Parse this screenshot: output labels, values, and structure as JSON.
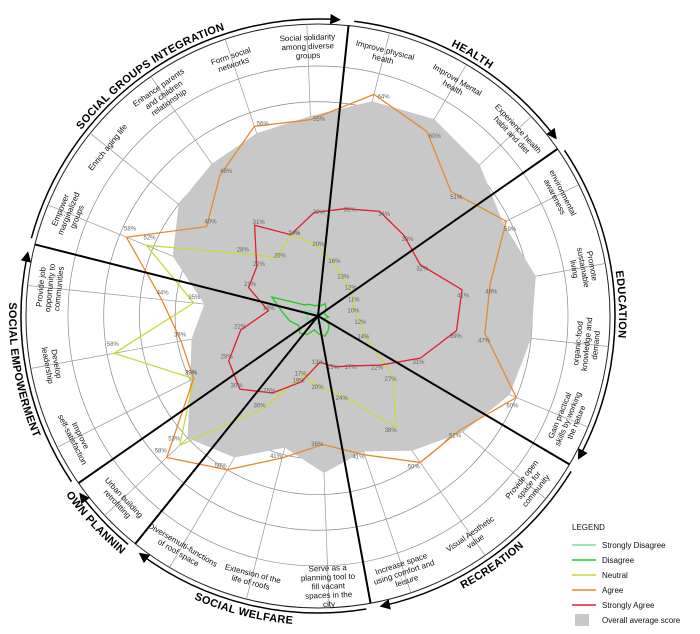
{
  "chart_data": {
    "type": "radar",
    "groups": [
      {
        "name": "HEALTH",
        "categories": [
          "Improve physical health",
          "Improve Mental health",
          "Experience health habit and diet"
        ]
      },
      {
        "name": "EDUCATION",
        "categories": [
          "environmental awareness",
          "Promote sustainable living",
          "organic-food knowledge and demand",
          "Gain practical skills by working the nature"
        ]
      },
      {
        "name": "RECREATION",
        "categories": [
          "Provide open space for community",
          "Visual Aesthetic value",
          "Increase space using comfort and leisure"
        ]
      },
      {
        "name": "SOCIAL WELFARE",
        "categories": [
          "Serve as a planning tool to fill vacant spaces in the city",
          "Extension of the life of roofs",
          "Diversemulti-functions of roof space"
        ]
      },
      {
        "name": "TOWN PLANNING",
        "categories": [
          "Urban building retrofitting"
        ]
      },
      {
        "name": "SOCIAL EMPOWERMENT",
        "categories": [
          "Improve self-satisfaction",
          "Develop leadership",
          "Provide job opportunity to communities"
        ]
      },
      {
        "name": "SOCIAL GROUPS INTEGRATION",
        "categories": [
          "Empower marginalized groups",
          "Enrich aging life",
          "Enhance parents and children relationship",
          "Form social networks",
          "Social solidarity among diverse groups"
        ]
      }
    ],
    "rlim": [
      0,
      70
    ],
    "rticks": [
      10,
      20,
      30,
      40,
      50,
      60,
      70
    ],
    "legend_title": "LEGEND",
    "series": [
      {
        "name": "Strongly Disagree",
        "color": "#6fe0a6",
        "values": [
          1,
          1,
          1,
          1,
          1,
          1,
          1,
          2,
          2,
          2,
          2,
          2,
          2,
          3,
          3,
          3,
          3,
          4,
          2,
          1,
          1,
          1
        ]
      },
      {
        "name": "Disagree",
        "color": "#22cc22",
        "values": [
          3,
          4,
          3,
          2,
          2,
          3,
          2,
          4,
          5,
          6,
          5,
          4,
          6,
          7,
          6,
          8,
          10,
          14,
          5,
          4,
          3,
          3
        ]
      },
      {
        "name": "Neutral",
        "color": "#c5dc3a",
        "values": [
          16,
          13,
          12,
          11,
          10,
          12,
          14,
          27,
          38,
          24,
          20,
          17,
          30,
          53,
          39,
          58,
          35,
          52,
          28,
          20,
          24,
          20
        ],
        "value_labels": [
          "16%",
          "13%",
          "12%",
          "11%",
          "10%",
          "12%",
          "14%",
          "27%",
          "38%",
          "24%",
          "20%",
          "17%",
          "30%",
          "53%",
          "39%",
          "58%",
          "35%",
          "52%",
          "28%",
          "20%",
          "24%",
          "20%"
        ]
      },
      {
        "name": "Agree",
        "color": "#e8892c",
        "values": [
          64,
          60,
          51,
          59,
          49,
          47,
          60,
          51,
          50,
          41,
          36,
          41,
          50,
          58,
          39,
          39,
          44,
          58,
          40,
          48,
          56,
          55
        ],
        "value_labels": [
          "64%",
          "60%",
          "51%",
          "59%",
          "49%",
          "47%",
          "60%",
          "51%",
          "50%",
          "41%",
          "36%",
          "41%",
          "50%",
          "58%",
          "39%",
          "39%",
          "44%",
          "58%",
          "40%",
          "48%",
          "56%",
          "55%"
        ]
      },
      {
        "name": "Strongly Agree",
        "color": "#e0202a",
        "values": [
          31,
          34,
          33,
          32,
          41,
          39,
          31,
          22,
          17,
          15,
          13,
          19,
          25,
          30,
          28,
          22,
          14,
          21,
          22,
          31,
          24,
          29
        ],
        "value_labels": [
          "31%",
          "34%",
          "33%",
          "32%",
          "41%",
          "39%",
          "31%",
          "22%",
          "17%",
          "15%",
          "13%",
          "19%",
          "25%",
          "30%",
          "28%",
          "22%",
          "14%",
          "21%",
          "22%",
          "31%",
          "24%",
          "29%"
        ]
      },
      {
        "name": "Overall average score",
        "color": "#c8c8c8",
        "area": true,
        "values": [
          62,
          64,
          62,
          58,
          62,
          60,
          58,
          52,
          46,
          40,
          44,
          38,
          46,
          50,
          40,
          36,
          32,
          44,
          50,
          52,
          54,
          56
        ]
      }
    ]
  }
}
